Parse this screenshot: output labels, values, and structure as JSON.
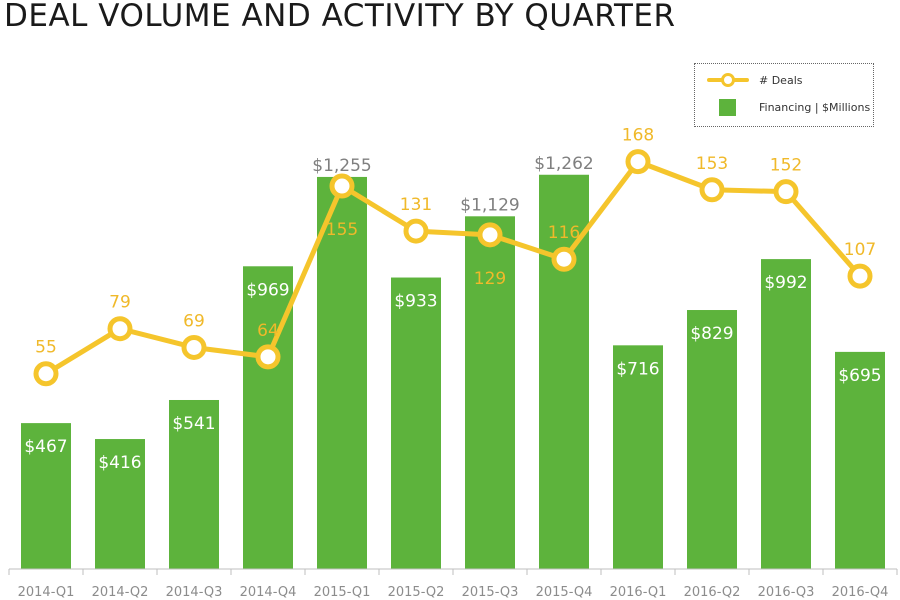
{
  "title": "DEAL VOLUME AND ACTIVITY BY QUARTER",
  "colors": {
    "bar": "#5db33c",
    "line": "#f5c52c",
    "bar_label_inside": "#ffffff",
    "bar_label_above": "#7f7f7f",
    "deal_label": "#f0b92a",
    "axis_text": "#8c8c8c"
  },
  "chart_data": {
    "type": "bar",
    "title": "DEAL VOLUME AND ACTIVITY BY QUARTER",
    "xlabel": "",
    "ylabel": "",
    "grid": false,
    "legend_position": "top-right",
    "categories": [
      "2014-Q1",
      "2014-Q2",
      "2014-Q3",
      "2014-Q4",
      "2015-Q1",
      "2015-Q2",
      "2015-Q3",
      "2015-Q4",
      "2016-Q1",
      "2016-Q2",
      "2016-Q3",
      "2016-Q4"
    ],
    "series": [
      {
        "name": "Financing | $Millions",
        "type": "bar",
        "values": [
          467,
          416,
          541,
          969,
          1255,
          933,
          1129,
          1262,
          716,
          829,
          992,
          695
        ],
        "labels": [
          "$467",
          "$416",
          "$541",
          "$969",
          "$1,255",
          "$933",
          "$1,129",
          "$1,262",
          "$716",
          "$829",
          "$992",
          "$695"
        ]
      },
      {
        "name": "# Deals",
        "type": "line",
        "values": [
          55,
          79,
          69,
          64,
          155,
          131,
          129,
          116,
          168,
          153,
          152,
          107
        ]
      }
    ]
  },
  "legend": {
    "deals_label": "# Deals",
    "financing_label": "Financing | $Millions"
  }
}
